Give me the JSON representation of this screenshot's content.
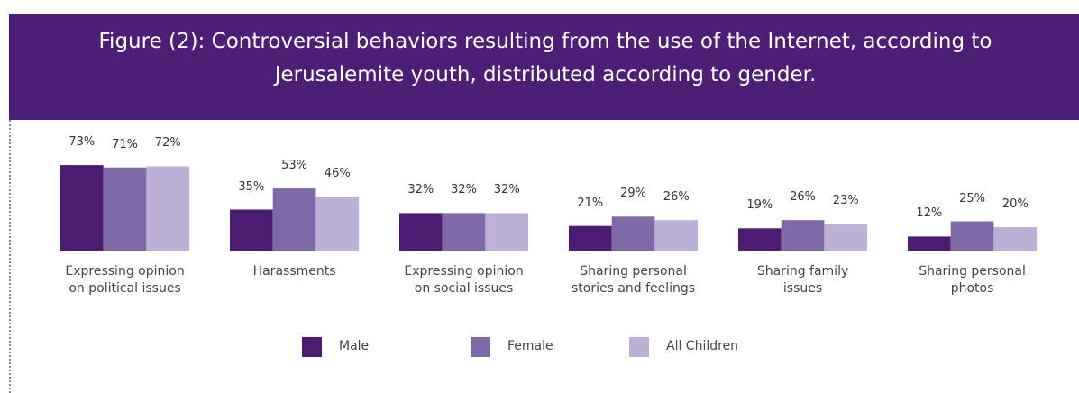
{
  "chart_data": {
    "type": "bar",
    "title": "Figure (2): Controversial behaviors resulting from the use of the Internet, according to Jerusalemite youth, distributed according to gender.",
    "categories": [
      "Expressing opinion\non political issues",
      "Harassments",
      "Expressing opinion\non social issues",
      "Sharing personal\nstories and feelings",
      "Sharing family\nissues",
      "Sharing personal\nphotos"
    ],
    "series": [
      {
        "name": "Male",
        "color": "#4a1d72",
        "values": [
          73,
          35,
          32,
          21,
          19,
          12
        ],
        "value_labels": [
          "73%",
          "35%",
          "32%",
          "21%",
          "19%",
          "12%"
        ]
      },
      {
        "name": "Female",
        "color": "#7f69a6",
        "values": [
          71,
          53,
          32,
          29,
          26,
          25
        ],
        "value_labels": [
          "71%",
          "53%",
          "32%",
          "29%",
          "26%",
          "25%"
        ]
      },
      {
        "name": "All Children",
        "color": "#bcb0d4",
        "values": [
          72,
          46,
          32,
          26,
          23,
          20
        ],
        "value_labels": [
          "72%",
          "46%",
          "32%",
          "26%",
          "23%",
          "20%"
        ]
      }
    ]
  }
}
